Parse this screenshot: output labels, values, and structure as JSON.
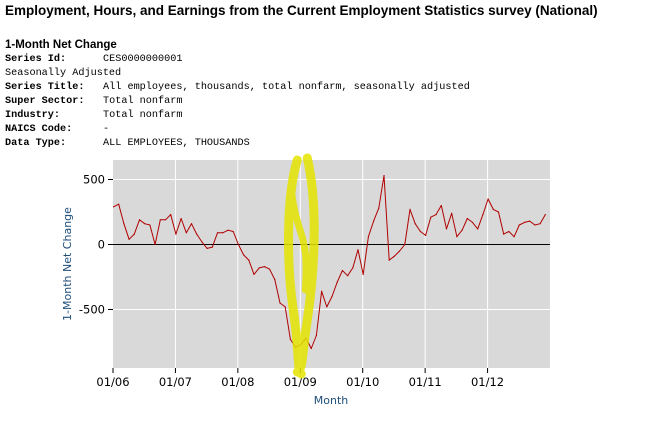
{
  "page": {
    "title": "Employment, Hours, and Earnings from the Current Employment Statistics survey (National)",
    "section_title": "1-Month Net Change"
  },
  "metadata": {
    "series_id": {
      "label": "Series Id:",
      "value": "CES0000000001"
    },
    "adjustment": "Seasonally Adjusted",
    "series_title": {
      "label": "Series Title:",
      "value": "All employees, thousands, total nonfarm, seasonally adjusted"
    },
    "super_sector": {
      "label": "Super Sector:",
      "value": "Total nonfarm"
    },
    "industry": {
      "label": "Industry:",
      "value": "Total nonfarm"
    },
    "naics_code": {
      "label": "NAICS Code:",
      "value": "-"
    },
    "data_type": {
      "label": "Data Type:",
      "value": "ALL EMPLOYEES, THOUSANDS"
    }
  },
  "colors": {
    "plot_background": "#d9d9d9",
    "gridline": "#ffffff",
    "series_line": "#b00000",
    "zero_line": "#000000",
    "axis_label": "#1f4e79",
    "highlight": "#e4e400"
  },
  "chart_data": {
    "type": "line",
    "title": "",
    "xlabel": "Month",
    "ylabel": "1-Month Net Change",
    "ylim": [
      -950,
      650
    ],
    "yticks": [
      500,
      0,
      -500
    ],
    "ytick_labels": [
      "500",
      "0",
      "-500"
    ],
    "xtick_labels": [
      "01/06",
      "01/07",
      "01/08",
      "01/09",
      "01/10",
      "01/11",
      "01/12"
    ],
    "grid": true,
    "x_start": "01/06",
    "x_end": "12/12",
    "series": [
      {
        "values": [
          290,
          310,
          160,
          40,
          80,
          190,
          160,
          150,
          0,
          190,
          190,
          230,
          80,
          200,
          90,
          160,
          80,
          20,
          -30,
          -20,
          90,
          90,
          110,
          100,
          0,
          -80,
          -120,
          -230,
          -180,
          -170,
          -190,
          -270,
          -450,
          -480,
          -730,
          -790,
          -770,
          -720,
          -800,
          -700,
          -360,
          -480,
          -400,
          -290,
          -200,
          -240,
          -180,
          -40,
          -230,
          60,
          180,
          280,
          530,
          -120,
          -90,
          -50,
          0,
          270,
          160,
          100,
          70,
          210,
          230,
          300,
          120,
          240,
          60,
          110,
          200,
          170,
          120,
          230,
          350,
          270,
          250,
          80,
          100,
          60,
          150,
          170,
          180,
          150,
          160,
          230
        ]
      }
    ],
    "annotation": {
      "type": "highlight-mark",
      "at": "01/09"
    }
  }
}
